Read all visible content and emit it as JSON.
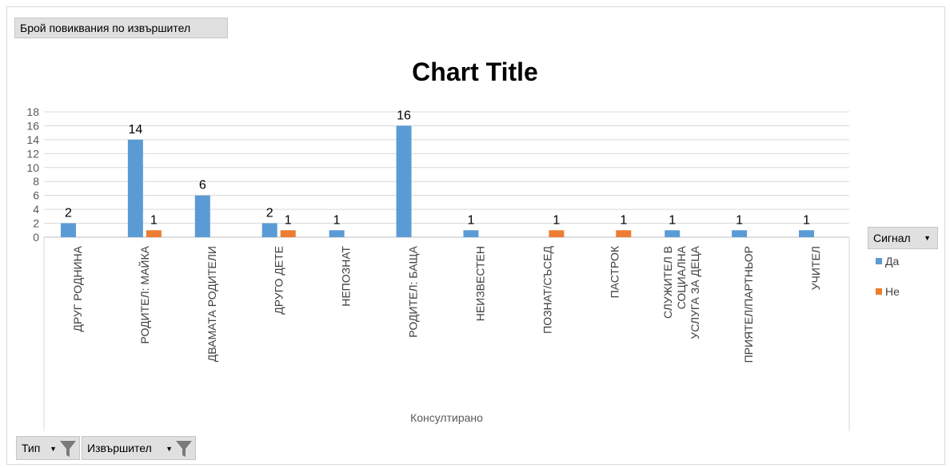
{
  "pivot": {
    "measure_button": "Брой повиквания по извършител",
    "filter_type": "Тип",
    "filter_performer": "Извършител",
    "legend_field": "Сигнал"
  },
  "colors": {
    "series_da": "#5b9bd5",
    "series_ne": "#ed7d31",
    "grid": "#d9d9d9"
  },
  "icons": {
    "filter": "funnel-filter-icon",
    "dropdown": "dropdown-arrow-icon"
  },
  "chart_data": {
    "type": "bar",
    "title": "Chart Title",
    "xlabel": "Консултирано",
    "ylabel": "",
    "ylim": [
      0,
      18
    ],
    "yticks": [
      0,
      2,
      4,
      6,
      8,
      10,
      12,
      14,
      16,
      18
    ],
    "grid": true,
    "legend_position": "right",
    "categories": [
      "ДРУГ РОДНИНА",
      "РОДИТЕЛ:  МАЙКА",
      "ДВАМАТА РОДИТЕЛИ",
      "ДРУГО ДЕТЕ",
      "НЕПОЗНАТ",
      "РОДИТЕЛ:  БАЩА",
      "НЕИЗВЕСТЕН",
      "ПОЗНАТ/СЪСЕД",
      "ПАСТРОК",
      "СЛУЖИТЕЛ В СОЦИАЛНА УСЛУГА ЗА ДЕЦА",
      "ПРИЯТЕЛ/ПАРТНЬОР",
      "УЧИТЕЛ"
    ],
    "series": [
      {
        "name": "Да",
        "values": [
          2,
          14,
          6,
          2,
          1,
          16,
          1,
          null,
          null,
          1,
          1,
          1
        ]
      },
      {
        "name": "Не",
        "values": [
          null,
          1,
          null,
          1,
          null,
          null,
          null,
          1,
          1,
          null,
          null,
          null
        ]
      }
    ]
  }
}
